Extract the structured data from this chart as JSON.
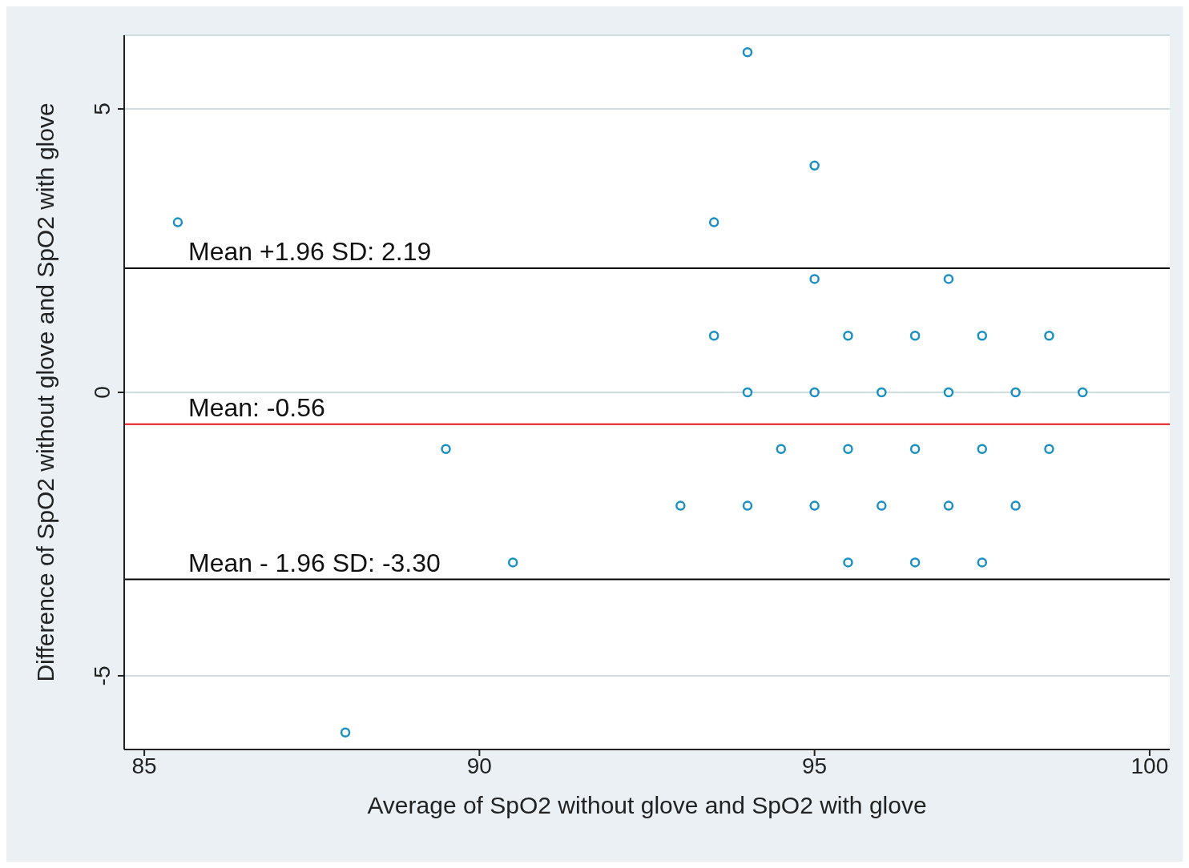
{
  "chart_data": {
    "type": "scatter",
    "xlabel": "Average of SpO2 without glove and SpO2 with glove",
    "ylabel": "Difference of SpO2 without glove and SpO2 with glove",
    "series": [
      {
        "color": "#1a8fc4",
        "x": [
          94,
          95,
          85.5,
          93.5,
          95,
          97,
          93.5,
          95.5,
          96.5,
          97.5,
          98.5,
          94,
          95,
          96,
          97,
          98,
          99,
          89.5,
          94.5,
          95.5,
          96.5,
          97.5,
          98.5,
          93,
          94,
          95,
          96,
          97,
          98,
          90.5,
          95.5,
          96.5,
          97.5,
          88
        ],
        "values": [
          6,
          4,
          3,
          3,
          2,
          2,
          1,
          1,
          1,
          1,
          1,
          0,
          0,
          0,
          0,
          0,
          0,
          -1,
          -1,
          -1,
          -1,
          -1,
          -1,
          -2,
          -2,
          -2,
          -2,
          -2,
          -2,
          -3,
          -3,
          -3,
          -3,
          -6
        ]
      }
    ],
    "xlim": [
      84.7,
      100.3
    ],
    "xticks": [
      85,
      90,
      95,
      100
    ],
    "ylim": [
      -6.3,
      6.3
    ],
    "yticks": [
      -5,
      0,
      5
    ],
    "ref_lines": [
      {
        "axis": "y",
        "value": 2.19,
        "label": "Mean +1.96 SD: 2.19",
        "color": "#000000"
      },
      {
        "axis": "y",
        "value": -0.56,
        "label": "Mean: -0.56",
        "color": "#e8151b"
      },
      {
        "axis": "y",
        "value": -3.3,
        "label": "Mean - 1.96 SD: -3.30",
        "color": "#000000"
      }
    ],
    "grid": "y",
    "legend": false,
    "marker": "circle"
  }
}
